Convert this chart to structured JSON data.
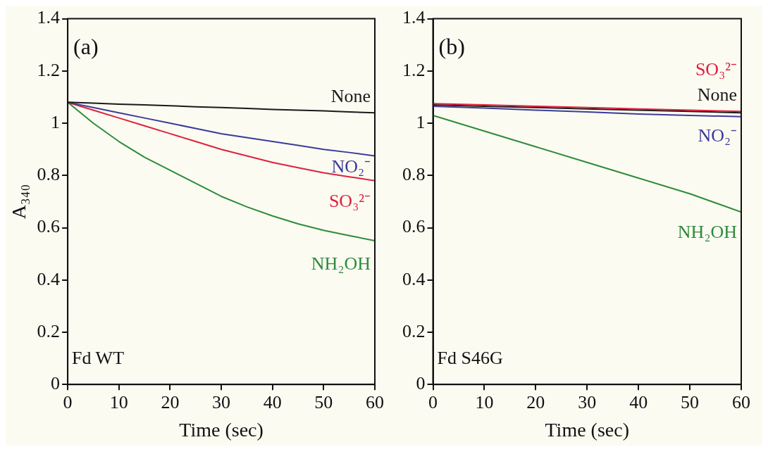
{
  "chart_data": [
    {
      "type": "line",
      "xlabel": "Time (sec)",
      "ylabel": "A₃₄₀",
      "annotations": [
        "(a)",
        "Fd WT"
      ],
      "xlim": [
        0,
        60
      ],
      "ylim": [
        0,
        1.4
      ],
      "xticks": [
        0,
        10,
        20,
        30,
        40,
        50,
        60
      ],
      "yticks": [
        0,
        0.2,
        0.4,
        0.6,
        0.8,
        1,
        1.2,
        1.4
      ],
      "x": [
        0,
        5,
        10,
        15,
        20,
        25,
        30,
        35,
        40,
        45,
        50,
        55,
        60
      ],
      "series": [
        {
          "name": "None",
          "color": "#1a1a1a",
          "values": [
            1.08,
            1.077,
            1.073,
            1.07,
            1.067,
            1.063,
            1.06,
            1.057,
            1.053,
            1.05,
            1.047,
            1.043,
            1.04
          ]
        },
        {
          "name": "NO₂⁻",
          "color": "#3b3b9a",
          "values": [
            1.08,
            1.06,
            1.04,
            1.02,
            1.0,
            0.98,
            0.96,
            0.945,
            0.93,
            0.915,
            0.9,
            0.888,
            0.875
          ]
        },
        {
          "name": "SO₃²⁻",
          "color": "#e0203c",
          "values": [
            1.08,
            1.05,
            1.02,
            0.99,
            0.96,
            0.93,
            0.9,
            0.875,
            0.85,
            0.83,
            0.81,
            0.795,
            0.78
          ]
        },
        {
          "name": "NH₂OH",
          "color": "#2e8b3a",
          "values": [
            1.08,
            1.0,
            0.93,
            0.87,
            0.82,
            0.77,
            0.72,
            0.68,
            0.645,
            0.615,
            0.59,
            0.57,
            0.55
          ]
        }
      ]
    },
    {
      "type": "line",
      "xlabel": "Time (sec)",
      "annotations": [
        "(b)",
        "Fd S46G"
      ],
      "xlim": [
        0,
        60
      ],
      "ylim": [
        0,
        1.4
      ],
      "xticks": [
        0,
        10,
        20,
        30,
        40,
        50,
        60
      ],
      "yticks": [
        0,
        0.2,
        0.4,
        0.6,
        0.8,
        1,
        1.2,
        1.4
      ],
      "x": [
        0,
        10,
        20,
        30,
        40,
        50,
        60
      ],
      "series": [
        {
          "name": "SO₃²⁻",
          "color": "#e0203c",
          "values": [
            1.075,
            1.07,
            1.065,
            1.06,
            1.055,
            1.05,
            1.045
          ]
        },
        {
          "name": "None",
          "color": "#1a1a1a",
          "values": [
            1.07,
            1.065,
            1.06,
            1.055,
            1.05,
            1.045,
            1.04
          ]
        },
        {
          "name": "NO₂⁻",
          "color": "#3b3b9a",
          "values": [
            1.065,
            1.058,
            1.05,
            1.043,
            1.035,
            1.03,
            1.025
          ]
        },
        {
          "name": "NH₂OH",
          "color": "#2e8b3a",
          "values": [
            1.03,
            0.97,
            0.91,
            0.85,
            0.79,
            0.73,
            0.66
          ]
        }
      ]
    }
  ]
}
